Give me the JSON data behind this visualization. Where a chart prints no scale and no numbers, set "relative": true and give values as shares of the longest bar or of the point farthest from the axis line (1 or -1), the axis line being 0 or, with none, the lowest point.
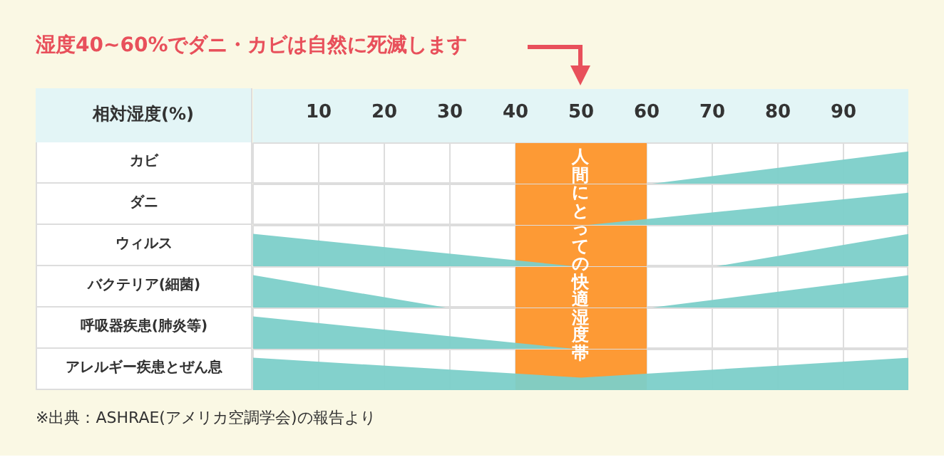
{
  "chart_data": [
    {
      "type": "area",
      "relative": true,
      "title": "湿度40~60%でダニ・カビは自然に死滅します",
      "xlabel": "相対湿度(%)",
      "ylabel": "カビ",
      "xlim": [
        0,
        100
      ],
      "xticks": [
        10,
        20,
        30,
        40,
        50,
        60,
        70,
        80,
        90
      ],
      "tick_labels": "x",
      "grid": "x",
      "x": [
        60,
        100
      ],
      "values": [
        0,
        1
      ],
      "color": "#7ccfc9",
      "bands": [
        {
          "axis": "x",
          "from": 40,
          "to": 60,
          "label": "人間にとっての快適湿度帯",
          "color": "#fd9a35"
        }
      ]
    },
    {
      "type": "area",
      "relative": true,
      "ylabel": "ダニ",
      "xlim": [
        0,
        100
      ],
      "xticks": [
        10,
        20,
        30,
        40,
        50,
        60,
        70,
        80,
        90
      ],
      "tick_labels": false,
      "grid": "x",
      "x": [
        50,
        100
      ],
      "values": [
        0,
        1
      ],
      "color": "#7ccfc9",
      "bands": [
        {
          "axis": "x",
          "from": 40,
          "to": 60,
          "color": "#fd9a35"
        }
      ]
    },
    {
      "type": "area",
      "relative": true,
      "ylabel": "ウィルス",
      "xlim": [
        0,
        100
      ],
      "xticks": [
        10,
        20,
        30,
        40,
        50,
        60,
        70,
        80,
        90
      ],
      "tick_labels": false,
      "grid": "x",
      "x": [
        0,
        50,
        60,
        70,
        100
      ],
      "values": [
        1,
        0,
        null,
        0,
        1
      ],
      "color": "#7ccfc9",
      "bands": [
        {
          "axis": "x",
          "from": 40,
          "to": 60,
          "color": "#fd9a35"
        }
      ]
    },
    {
      "type": "area",
      "relative": true,
      "ylabel": "バクテリア(細菌)",
      "xlim": [
        0,
        100
      ],
      "xticks": [
        10,
        20,
        30,
        40,
        50,
        60,
        70,
        80,
        90
      ],
      "tick_labels": false,
      "grid": "x",
      "x": [
        0,
        30,
        45,
        60,
        100
      ],
      "values": [
        1,
        0,
        null,
        0,
        1
      ],
      "color": "#7ccfc9",
      "bands": [
        {
          "axis": "x",
          "from": 40,
          "to": 60,
          "color": "#fd9a35"
        }
      ]
    },
    {
      "type": "area",
      "relative": true,
      "ylabel": "呼吸器疾患(肺炎等)",
      "xlim": [
        0,
        100
      ],
      "xticks": [
        10,
        20,
        30,
        40,
        50,
        60,
        70,
        80,
        90
      ],
      "tick_labels": false,
      "grid": "x",
      "x": [
        0,
        50
      ],
      "values": [
        1,
        0
      ],
      "color": "#7ccfc9",
      "bands": [
        {
          "axis": "x",
          "from": 40,
          "to": 60,
          "color": "#fd9a35"
        }
      ]
    },
    {
      "type": "area",
      "relative": true,
      "ylabel": "アレルギー疾患とぜん息",
      "xlim": [
        0,
        100
      ],
      "xticks": [
        10,
        20,
        30,
        40,
        50,
        60,
        70,
        80,
        90
      ],
      "tick_labels": false,
      "grid": "x",
      "x": [
        0,
        50,
        100
      ],
      "values": [
        1,
        0.4,
        1
      ],
      "color": "#7ccfc9",
      "bands": [
        {
          "axis": "x",
          "from": 40,
          "to": 60,
          "color": "#fd9a35"
        }
      ],
      "annotations": [
        "※出典：ASHRAE(アメリカ空調学会)の報告より"
      ]
    }
  ]
}
